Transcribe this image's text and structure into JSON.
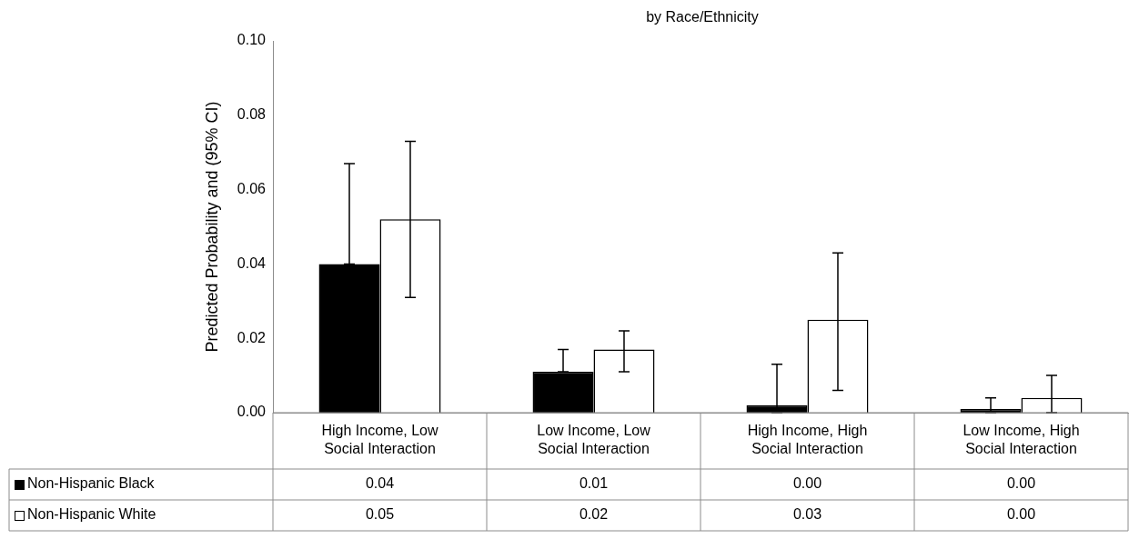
{
  "chart_data": {
    "type": "bar",
    "title": "by Race/Ethnicity",
    "ylabel": "Predicted Probability and (95% CI)",
    "categories": [
      "High Income, Low Social Interaction",
      "Low Income, Low Social Interaction",
      "High Income, High Social Interaction",
      "Low Income, High Social Interaction"
    ],
    "series": [
      {
        "name": "Non-Hispanic Black",
        "color": "#000000",
        "values": [
          0.04,
          0.011,
          0.002,
          0.001
        ],
        "errors": [
          [
            0.04,
            0.067
          ],
          [
            0.011,
            0.017
          ],
          [
            0.0,
            0.013
          ],
          [
            0.0,
            0.004
          ]
        ],
        "value_labels": [
          "0.04",
          "0.01",
          "0.00",
          "0.00"
        ]
      },
      {
        "name": "Non-Hispanic White",
        "color": "#ffffff",
        "values": [
          0.052,
          0.017,
          0.025,
          0.004
        ],
        "errors": [
          [
            0.031,
            0.073
          ],
          [
            0.011,
            0.022
          ],
          [
            0.006,
            0.043
          ],
          [
            0.0,
            0.01
          ]
        ],
        "value_labels": [
          "0.05",
          "0.02",
          "0.03",
          "0.00"
        ]
      }
    ],
    "ylim": [
      0,
      0.1
    ],
    "yticks": [
      {
        "value": 0,
        "label": "0.00"
      },
      {
        "value": 0.02,
        "label": "0.02"
      },
      {
        "value": 0.04,
        "label": "0.04"
      },
      {
        "value": 0.06,
        "label": "0.06"
      },
      {
        "value": 0.08,
        "label": "0.08"
      },
      {
        "value": 0.1,
        "label": "0.10"
      }
    ],
    "grid": false,
    "legend": "bottom left"
  }
}
